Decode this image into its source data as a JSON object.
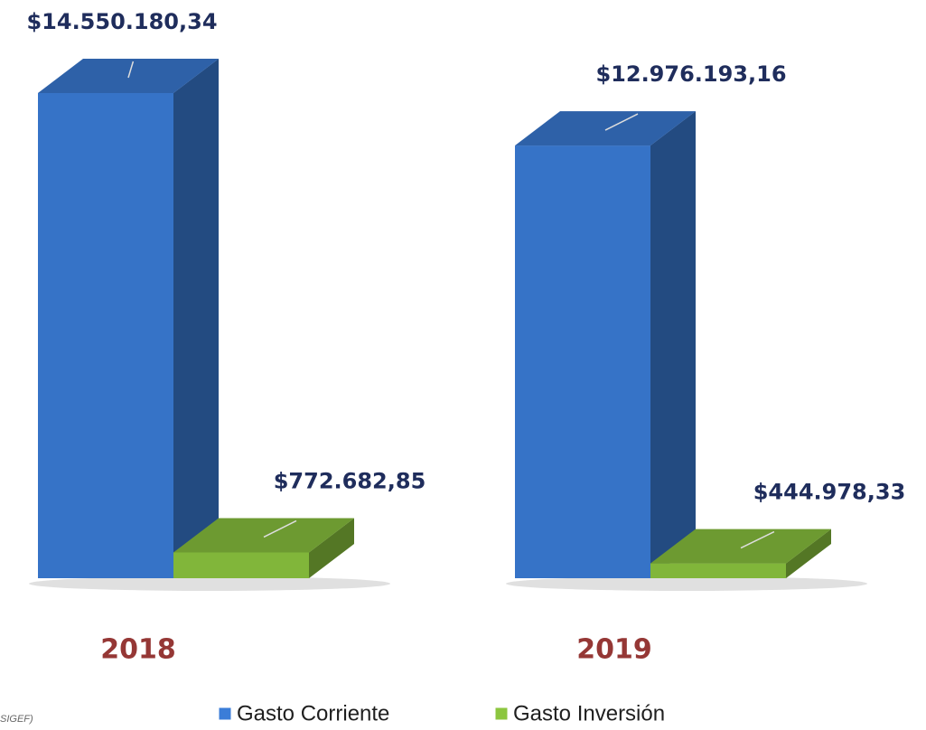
{
  "chart_data": {
    "type": "bar3d",
    "categories": [
      "2018",
      "2019"
    ],
    "series": [
      {
        "name": "Gasto Corriente",
        "color": "#3b7dd8",
        "values": [
          14550180.34,
          12976193.16
        ],
        "value_labels": [
          "$14.550.180,34",
          "$12.976.193,16"
        ]
      },
      {
        "name": "Gasto Inversión",
        "color": "#8cc63f",
        "values": [
          772682.85,
          444978.33
        ],
        "value_labels": [
          "$772.682,85",
          "$444.978,33"
        ]
      }
    ],
    "note": "SIGEF)"
  }
}
